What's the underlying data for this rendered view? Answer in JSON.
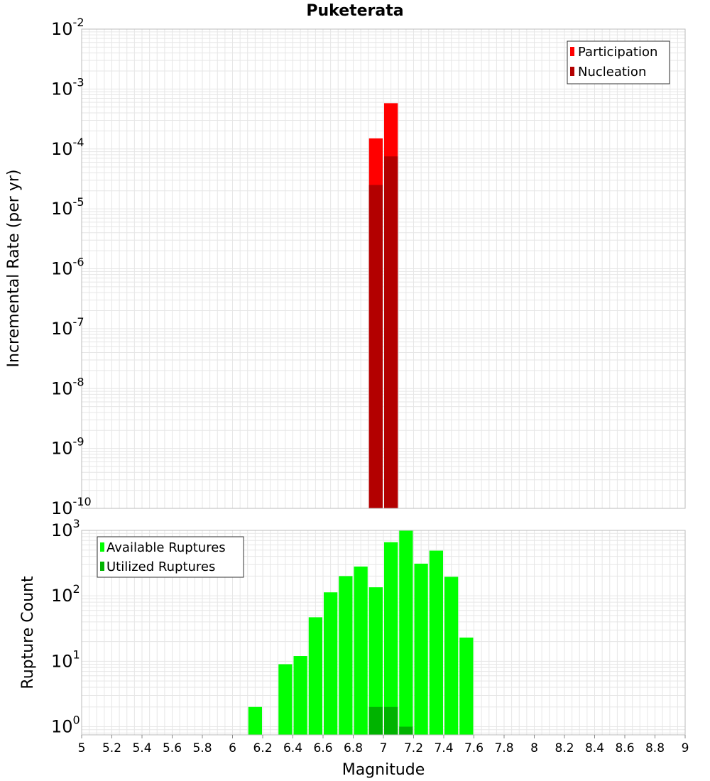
{
  "title": "Puketerata",
  "colors": {
    "participation": "#ff0000",
    "nucleation": "#b30000",
    "available": "#00ff00",
    "utilized": "#00b300",
    "grid": "#e6e6e6",
    "frame": "#bbbbbb"
  },
  "chart_data": [
    {
      "type": "bar",
      "title": "Puketerata",
      "xlabel": "",
      "ylabel": "Incremental Rate (per yr)",
      "xlim": [
        5,
        9
      ],
      "ylim": [
        1e-10,
        0.01
      ],
      "log_y": true,
      "grid": true,
      "legend_position": "top-right",
      "bin_width": 0.1,
      "y_tick_exponents": [
        -2,
        -3,
        -4,
        -5,
        -6,
        -7,
        -8,
        -9,
        -10
      ],
      "series": [
        {
          "name": "Participation",
          "color": "#ff0000",
          "points": [
            {
              "x": 6.95,
              "y": 0.00015
            },
            {
              "x": 7.05,
              "y": 0.00058
            }
          ]
        },
        {
          "name": "Nucleation",
          "color": "#b30000",
          "points": [
            {
              "x": 6.95,
              "y": 2.5e-05
            },
            {
              "x": 7.05,
              "y": 7.5e-05
            }
          ]
        }
      ]
    },
    {
      "type": "bar",
      "title": "",
      "xlabel": "Magnitude",
      "ylabel": "Rupture Count",
      "xlim": [
        5,
        9
      ],
      "ylim": [
        0.75,
        1000
      ],
      "log_y": true,
      "grid": true,
      "legend_position": "top-left",
      "bin_width": 0.1,
      "y_tick_exponents": [
        3,
        2,
        1,
        0
      ],
      "x_ticks": [
        "5",
        "5.2",
        "5.4",
        "5.6",
        "5.8",
        "6",
        "6.2",
        "6.4",
        "6.6",
        "6.8",
        "7",
        "7.2",
        "7.4",
        "7.6",
        "7.8",
        "8",
        "8.2",
        "8.4",
        "8.6",
        "8.8",
        "9"
      ],
      "series": [
        {
          "name": "Available Ruptures",
          "color": "#00ff00",
          "points": [
            {
              "x": 6.15,
              "y": 2
            },
            {
              "x": 6.35,
              "y": 9
            },
            {
              "x": 6.45,
              "y": 12
            },
            {
              "x": 6.55,
              "y": 47
            },
            {
              "x": 6.65,
              "y": 113
            },
            {
              "x": 6.75,
              "y": 200
            },
            {
              "x": 6.85,
              "y": 280
            },
            {
              "x": 6.95,
              "y": 135
            },
            {
              "x": 7.05,
              "y": 660
            },
            {
              "x": 7.15,
              "y": 1000
            },
            {
              "x": 7.25,
              "y": 310
            },
            {
              "x": 7.35,
              "y": 490
            },
            {
              "x": 7.45,
              "y": 195
            },
            {
              "x": 7.55,
              "y": 23
            }
          ]
        },
        {
          "name": "Utilized Ruptures",
          "color": "#00b300",
          "points": [
            {
              "x": 6.95,
              "y": 2
            },
            {
              "x": 7.05,
              "y": 2
            },
            {
              "x": 7.15,
              "y": 1
            }
          ]
        }
      ]
    }
  ]
}
